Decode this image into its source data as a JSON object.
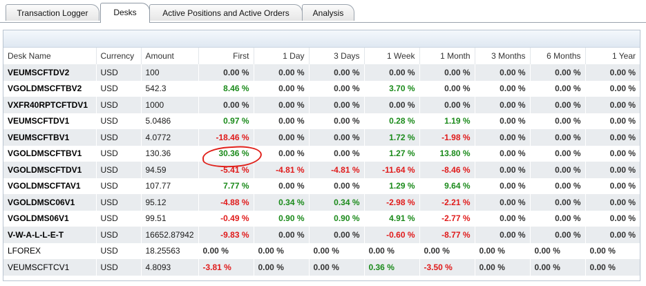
{
  "tabs": [
    {
      "label": "Transaction Logger",
      "active": false
    },
    {
      "label": "Desks",
      "active": true
    },
    {
      "label": "Active Positions and Active Orders",
      "active": false
    },
    {
      "label": "Analysis",
      "active": false
    }
  ],
  "table": {
    "columns": [
      "Desk Name",
      "Currency",
      "Amount",
      "First",
      "1 Day",
      "3 Days",
      "1 Week",
      "1 Month",
      "3 Months",
      "6 Months",
      "1 Year"
    ],
    "rows": [
      {
        "name": "VEUMSCFTDV2",
        "currency": "USD",
        "amount": "100",
        "values": [
          "0.00 %",
          "0.00 %",
          "0.00 %",
          "0.00 %",
          "0.00 %",
          "0.00 %",
          "0.00 %",
          "0.00 %"
        ]
      },
      {
        "name": "VGOLDMSCFTBV2",
        "currency": "USD",
        "amount": "542.3",
        "values": [
          "8.46 %",
          "0.00 %",
          "0.00 %",
          "3.70 %",
          "0.00 %",
          "0.00 %",
          "0.00 %",
          "0.00 %"
        ]
      },
      {
        "name": "VXFR40RPTCFTDV1",
        "currency": "USD",
        "amount": "1000",
        "values": [
          "0.00 %",
          "0.00 %",
          "0.00 %",
          "0.00 %",
          "0.00 %",
          "0.00 %",
          "0.00 %",
          "0.00 %"
        ]
      },
      {
        "name": "VEUMSCFTDV1",
        "currency": "USD",
        "amount": "5.0486",
        "values": [
          "0.97 %",
          "0.00 %",
          "0.00 %",
          "0.28 %",
          "1.19 %",
          "0.00 %",
          "0.00 %",
          "0.00 %"
        ]
      },
      {
        "name": "VEUMSCFTBV1",
        "currency": "USD",
        "amount": "4.0772",
        "values": [
          "-18.46 %",
          "0.00 %",
          "0.00 %",
          "1.72 %",
          "-1.98 %",
          "0.00 %",
          "0.00 %",
          "0.00 %"
        ]
      },
      {
        "name": "VGOLDMSCFTBV1",
        "currency": "USD",
        "amount": "130.36",
        "values": [
          "30.36 %",
          "0.00 %",
          "0.00 %",
          "1.27 %",
          "13.80 %",
          "0.00 %",
          "0.00 %",
          "0.00 %"
        ]
      },
      {
        "name": "VGOLDMSCFTDV1",
        "currency": "USD",
        "amount": "94.59",
        "values": [
          "-5.41 %",
          "-4.81 %",
          "-4.81 %",
          "-11.64 %",
          "-8.46 %",
          "0.00 %",
          "0.00 %",
          "0.00 %"
        ]
      },
      {
        "name": "VGOLDMSCFTAV1",
        "currency": "USD",
        "amount": "107.77",
        "values": [
          "7.77 %",
          "0.00 %",
          "0.00 %",
          "1.29 %",
          "9.64 %",
          "0.00 %",
          "0.00 %",
          "0.00 %"
        ]
      },
      {
        "name": "VGOLDMSC06V1",
        "currency": "USD",
        "amount": "95.12",
        "values": [
          "-4.88 %",
          "0.34 %",
          "0.34 %",
          "-2.98 %",
          "-2.21 %",
          "0.00 %",
          "0.00 %",
          "0.00 %"
        ]
      },
      {
        "name": "VGOLDMS06V1",
        "currency": "USD",
        "amount": "99.51",
        "values": [
          "-0.49 %",
          "0.90 %",
          "0.90 %",
          "4.91 %",
          "-2.77 %",
          "0.00 %",
          "0.00 %",
          "0.00 %"
        ]
      },
      {
        "name": "V-W-A-L-L-E-T",
        "currency": "USD",
        "amount": "16652.87942",
        "values": [
          "-9.83 %",
          "0.00 %",
          "0.00 %",
          "-0.60 %",
          "-8.77 %",
          "0.00 %",
          "0.00 %",
          "0.00 %"
        ]
      },
      {
        "name": "LFOREX",
        "currency": "USD",
        "amount": "18.25563",
        "plain": true,
        "values": [
          "0.00 %",
          "0.00 %",
          "0.00 %",
          "0.00 %",
          "0.00 %",
          "0.00 %",
          "0.00 %",
          "0.00 %"
        ]
      },
      {
        "name": "VEUMSCFTCV1",
        "currency": "USD",
        "amount": "4.8093",
        "plain": true,
        "values": [
          "-3.81 %",
          "0.00 %",
          "0.00 %",
          "0.36 %",
          "-3.50 %",
          "0.00 %",
          "0.00 %",
          "0.00 %"
        ]
      }
    ]
  },
  "colors": {
    "positive": "#1a8a1a",
    "negative": "#e01a1a",
    "annotation": "#e0201a"
  }
}
